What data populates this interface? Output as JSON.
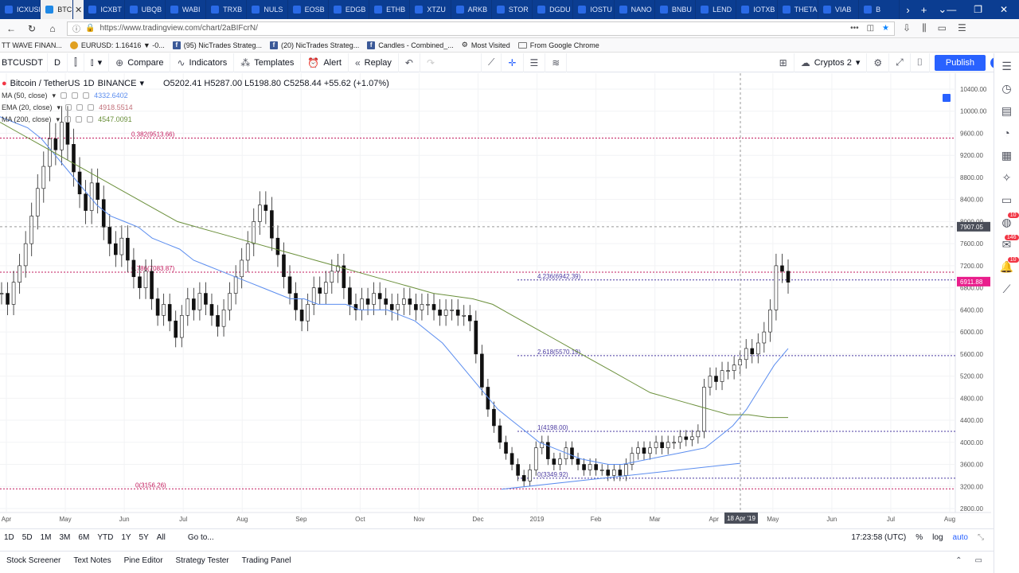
{
  "browser": {
    "tabs": [
      {
        "label": "ICXUSD"
      },
      {
        "label": "BTC",
        "active": true
      },
      {
        "label": "ICXBT"
      },
      {
        "label": "UBQB"
      },
      {
        "label": "WABI"
      },
      {
        "label": "TRXB"
      },
      {
        "label": "NULS"
      },
      {
        "label": "EOSB"
      },
      {
        "label": "EDGB"
      },
      {
        "label": "ETHB"
      },
      {
        "label": "XTZU"
      },
      {
        "label": "ARKB"
      },
      {
        "label": "STOR"
      },
      {
        "label": "DGDU"
      },
      {
        "label": "IOSTU"
      },
      {
        "label": "NANO"
      },
      {
        "label": "BNBU"
      },
      {
        "label": "LEND"
      },
      {
        "label": "IOTXB"
      },
      {
        "label": "THETA"
      },
      {
        "label": "VIAB"
      },
      {
        "label": "B"
      }
    ],
    "url": "https://www.tradingview.com/chart/2aBIFcrN/",
    "bookmarks": [
      {
        "label": "TT WAVE FINAN...",
        "kind": "none"
      },
      {
        "label": "EURUSD: 1.16416 ▼ -0...",
        "kind": "fx"
      },
      {
        "label": "(95) NicTrades Strateg...",
        "kind": "fb"
      },
      {
        "label": "(20) NicTrades Strateg...",
        "kind": "fb"
      },
      {
        "label": "Candles - Combined_...",
        "kind": "fb"
      },
      {
        "label": "Most Visited",
        "kind": "gear"
      },
      {
        "label": "From Google Chrome",
        "kind": "folder"
      }
    ]
  },
  "toolbar": {
    "symbol": "BTCUSDT",
    "interval": "D",
    "compare": "Compare",
    "indicators": "Indicators",
    "templates": "Templates",
    "alert": "Alert",
    "replay": "Replay",
    "layout_name": "Cryptos 2",
    "publish": "Publish"
  },
  "legend": {
    "pair": "Bitcoin / TetherUS",
    "interval": "1D",
    "exchange": "BINANCE",
    "ohlc": "O5202.41  H5287.00  L5198.80  C5258.44  +55.62 (+1.07%)",
    "indicators": [
      {
        "name": "MA (50, close)",
        "value": "4332.6402",
        "color": "#5b8def"
      },
      {
        "name": "EMA (20, close)",
        "value": "4918.5514",
        "color": "#c2707a"
      },
      {
        "name": "MA (200, close)",
        "value": "4547.0091",
        "color": "#6a8f3a"
      }
    ]
  },
  "chart_data": {
    "type": "candlestick",
    "y_ticks": [
      "10400.00",
      "10000.00",
      "9600.00",
      "9200.00",
      "8800.00",
      "8400.00",
      "8000.00",
      "7600.00",
      "7200.00",
      "6800.00",
      "6400.00",
      "6000.00",
      "5600.00",
      "5200.00",
      "4800.00",
      "4400.00",
      "4000.00",
      "3600.00",
      "3200.00",
      "2800.00"
    ],
    "ylim": [
      2800,
      10400
    ],
    "x_ticks": [
      "Apr",
      "May",
      "Jun",
      "Jul",
      "Aug",
      "Sep",
      "Oct",
      "Nov",
      "Dec",
      "2019",
      "Feb",
      "Mar",
      "Apr",
      "May",
      "Jun",
      "Jul",
      "Aug"
    ],
    "crosshair_price": "7907.05",
    "crosshair_date": "18 Apr '19",
    "last_price": "6911.88",
    "fib_levels": [
      {
        "label": "0.382(9513.66)",
        "price": 9513.66
      },
      {
        "label": "0.786(7083.87)",
        "price": 7083.87
      },
      {
        "label": "4.236(6942.39)",
        "price": 6942.39
      },
      {
        "label": "2.618(5570.19)",
        "price": 5570.19
      },
      {
        "label": "1(4198.00)",
        "price": 4198.0
      },
      {
        "label": "0(3349.92)",
        "price": 3349.92
      },
      {
        "label": "0(3156.26)",
        "price": 3156.26
      }
    ],
    "candles": [
      6700,
      6500,
      6900,
      7200,
      7600,
      8100,
      8600,
      9000,
      9500,
      9300,
      9800,
      9400,
      8900,
      8500,
      8200,
      8700,
      8400,
      7900,
      7600,
      7400,
      7700,
      7300,
      7000,
      6800,
      7100,
      6600,
      6300,
      6500,
      6200,
      5900,
      6300,
      6600,
      6400,
      6700,
      6500,
      6300,
      6100,
      6400,
      6700,
      7000,
      7300,
      7600,
      8000,
      8300,
      8200,
      7700,
      7400,
      7000,
      6700,
      6400,
      6200,
      6500,
      6800,
      6700,
      6900,
      7100,
      7200,
      6800,
      6500,
      6400,
      6600,
      6500,
      6700,
      6600,
      6500,
      6400,
      6500,
      6600,
      6500,
      6400,
      6500,
      6500,
      6400,
      6300,
      6400,
      6400,
      6300,
      6300,
      6200,
      5600,
      5000,
      4600,
      4300,
      4000,
      3800,
      3600,
      3400,
      3300,
      3500,
      3900,
      4000,
      3700,
      3600,
      3700,
      3900,
      3700,
      3600,
      3500,
      3600,
      3500,
      3500,
      3400,
      3500,
      3400,
      3600,
      3800,
      3900,
      3800,
      3900,
      4000,
      3900,
      4000,
      4000,
      4100,
      4050,
      4100,
      4200,
      5000,
      5200,
      5100,
      5300,
      5300,
      5400,
      5500,
      5700,
      5600,
      5800,
      6000,
      6400,
      7200,
      7100,
      6900
    ],
    "ma50": [
      9900,
      9800,
      9700,
      9500,
      9200,
      8900,
      8600,
      8300,
      8100,
      8000,
      7900,
      7700,
      7600,
      7500,
      7300,
      7200,
      7100,
      7000,
      6900,
      6800,
      6700,
      6600,
      6600,
      6500,
      6500,
      6500,
      6400,
      6400,
      6400,
      6300,
      6200,
      6000,
      5800,
      5500,
      5200,
      4900,
      4600,
      4400,
      4200,
      4000,
      3900,
      3800,
      3700,
      3650,
      3600,
      3600,
      3650,
      3700,
      3750,
      3800,
      3850,
      3900,
      4100,
      4300,
      4600,
      5000,
      5400,
      5700
    ],
    "ma200": [
      9800,
      9600,
      9400,
      9200,
      9000,
      8800,
      8600,
      8400,
      8200,
      8000,
      7900,
      7800,
      7700,
      7600,
      7500,
      7400,
      7300,
      7200,
      7100,
      7000,
      6900,
      6800,
      6700,
      6650,
      6600,
      6500,
      6300,
      6100,
      5900,
      5700,
      5500,
      5300,
      5100,
      4900,
      4800,
      4700,
      4600,
      4500,
      4500,
      4450,
      4450
    ]
  },
  "timeframes": [
    "1D",
    "5D",
    "1M",
    "3M",
    "6M",
    "YTD",
    "1Y",
    "5Y",
    "All"
  ],
  "goto": "Go to...",
  "clock": "17:23:58 (UTC)",
  "scale_opts": {
    "percent": "%",
    "log": "log",
    "auto": "auto"
  },
  "bottom_tabs": [
    "Stock Screener",
    "Text Notes",
    "Pine Editor",
    "Strategy Tester",
    "Trading Panel"
  ],
  "right_badges": [
    "10",
    "146",
    "10"
  ]
}
